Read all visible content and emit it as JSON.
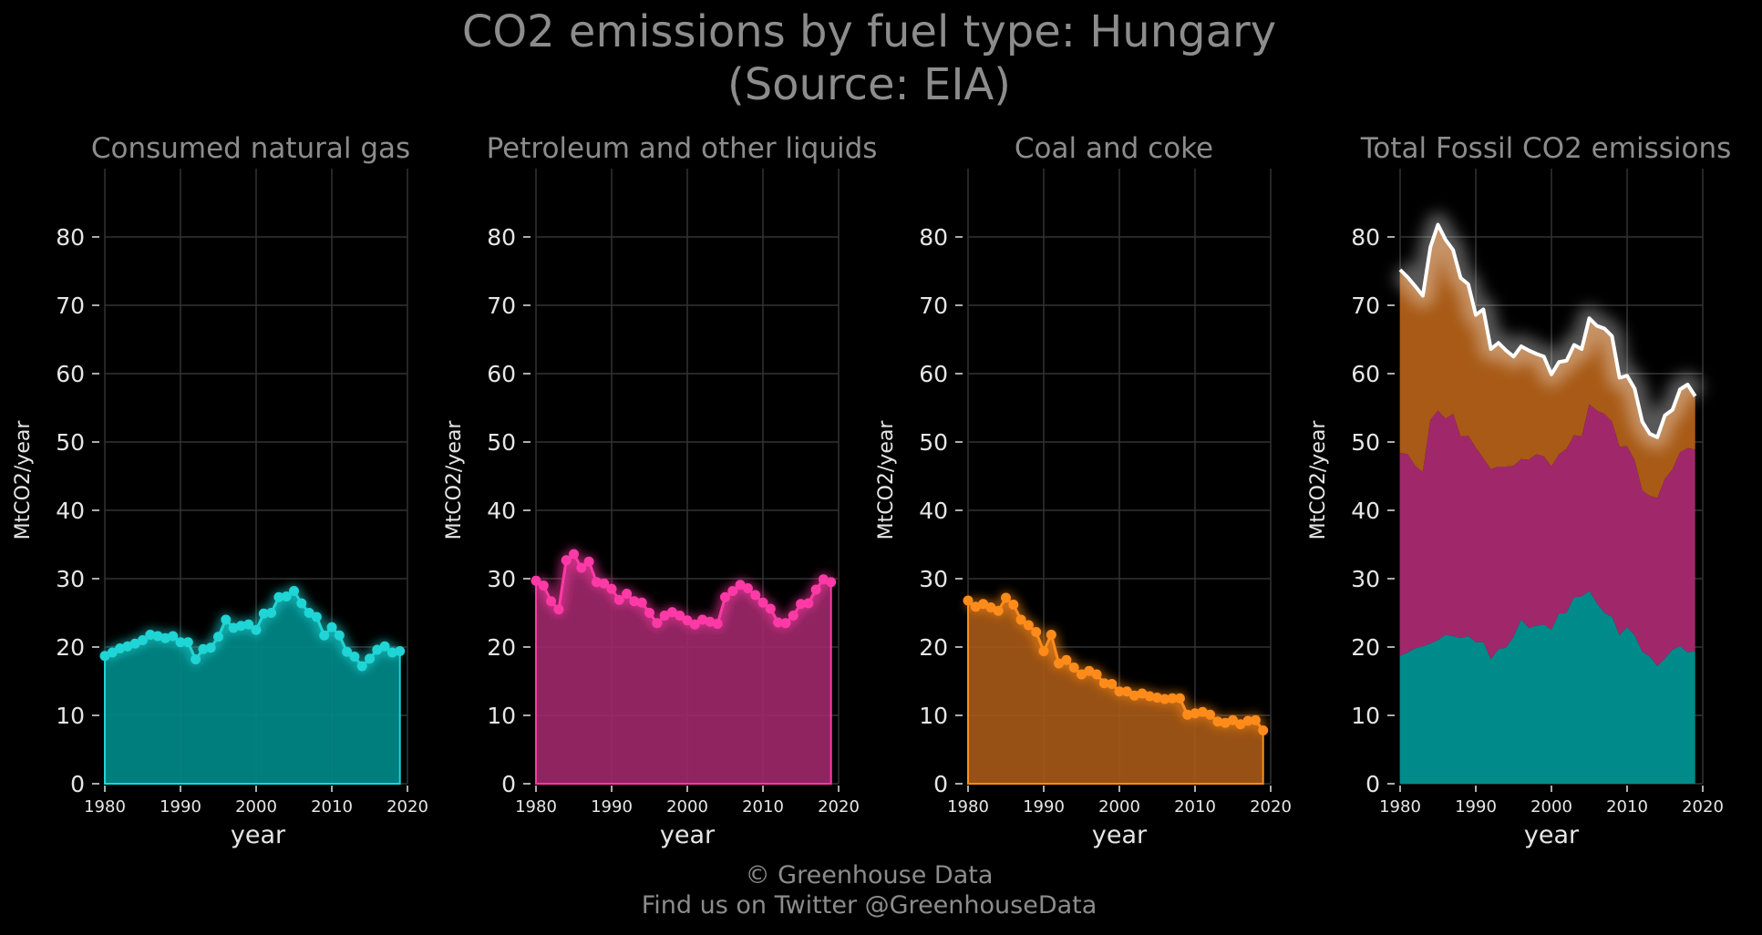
{
  "header": {
    "title_line1": "CO2 emissions by fuel type: Hungary",
    "title_line2": "(Source: EIA)"
  },
  "footer": {
    "line1": "© Greenhouse Data",
    "line2": "Find us on Twitter @GreenhouseData"
  },
  "colors": {
    "gas": "#1fd5d5",
    "gas_fill": "#008b8b",
    "petroleum": "#ff3aa6",
    "petroleum_fill": "#a0286a",
    "coal": "#ff8c1a",
    "coal_fill": "#a85a16",
    "total_line": "#ffffff",
    "grid": "#333333"
  },
  "chart_data": [
    {
      "type": "area",
      "title": "Consumed natural gas",
      "xlabel": "year",
      "ylabel": "MtCO2/year",
      "xlim": [
        1980,
        2020
      ],
      "ylim": [
        0,
        90
      ],
      "xticks": [
        "1980",
        "1990",
        "2000",
        "2010",
        "2020"
      ],
      "yticks": [
        "0",
        "10",
        "20",
        "30",
        "40",
        "50",
        "60",
        "70",
        "80"
      ],
      "grid": true,
      "series": [
        {
          "color_key": "gas",
          "x": [
            1980,
            1981,
            1982,
            1983,
            1984,
            1985,
            1986,
            1987,
            1988,
            1989,
            1990,
            1991,
            1992,
            1993,
            1994,
            1995,
            1996,
            1997,
            1998,
            1999,
            2000,
            2001,
            2002,
            2003,
            2004,
            2005,
            2006,
            2007,
            2008,
            2009,
            2010,
            2011,
            2012,
            2013,
            2014,
            2015,
            2016,
            2017,
            2018,
            2019
          ],
          "values": [
            18.7,
            19.2,
            19.8,
            20.1,
            20.5,
            21.0,
            21.8,
            21.6,
            21.3,
            21.6,
            20.7,
            20.7,
            18.2,
            19.7,
            19.9,
            21.5,
            24.0,
            22.8,
            23.1,
            23.3,
            22.5,
            24.9,
            25.0,
            27.3,
            27.4,
            28.2,
            26.4,
            25.0,
            24.4,
            21.7,
            22.9,
            21.7,
            19.3,
            18.6,
            17.2,
            18.3,
            19.6,
            20.1,
            19.2,
            19.4
          ]
        }
      ]
    },
    {
      "type": "area",
      "title": "Petroleum and other liquids",
      "xlabel": "year",
      "ylabel": "MtCO2/year",
      "xlim": [
        1980,
        2020
      ],
      "ylim": [
        0,
        90
      ],
      "xticks": [
        "1980",
        "1990",
        "2000",
        "2010",
        "2020"
      ],
      "yticks": [
        "0",
        "10",
        "20",
        "30",
        "40",
        "50",
        "60",
        "70",
        "80"
      ],
      "grid": true,
      "series": [
        {
          "color_key": "petroleum",
          "x": [
            1980,
            1981,
            1982,
            1983,
            1984,
            1985,
            1986,
            1987,
            1988,
            1989,
            1990,
            1991,
            1992,
            1993,
            1994,
            1995,
            1996,
            1997,
            1998,
            1999,
            2000,
            2001,
            2002,
            2003,
            2004,
            2005,
            2006,
            2007,
            2008,
            2009,
            2010,
            2011,
            2012,
            2013,
            2014,
            2015,
            2016,
            2017,
            2018,
            2019
          ],
          "values": [
            29.7,
            29.0,
            26.7,
            25.5,
            32.7,
            33.6,
            31.6,
            32.5,
            29.5,
            29.3,
            28.5,
            26.9,
            27.8,
            26.7,
            26.5,
            25.0,
            23.5,
            24.6,
            25.1,
            24.6,
            23.9,
            23.3,
            24.0,
            23.7,
            23.4,
            27.3,
            28.2,
            29.1,
            28.6,
            27.6,
            26.5,
            25.6,
            23.6,
            23.5,
            24.6,
            26.3,
            26.4,
            28.4,
            29.9,
            29.5
          ]
        }
      ]
    },
    {
      "type": "area",
      "title": "Coal and coke",
      "xlabel": "year",
      "ylabel": "MtCO2/year",
      "xlim": [
        1980,
        2020
      ],
      "ylim": [
        0,
        90
      ],
      "xticks": [
        "1980",
        "1990",
        "2000",
        "2010",
        "2020"
      ],
      "yticks": [
        "0",
        "10",
        "20",
        "30",
        "40",
        "50",
        "60",
        "70",
        "80"
      ],
      "grid": true,
      "series": [
        {
          "color_key": "coal",
          "x": [
            1980,
            1981,
            1982,
            1983,
            1984,
            1985,
            1986,
            1987,
            1988,
            1989,
            1990,
            1991,
            1992,
            1993,
            1994,
            1995,
            1996,
            1997,
            1998,
            1999,
            2000,
            2001,
            2002,
            2003,
            2004,
            2005,
            2006,
            2007,
            2008,
            2009,
            2010,
            2011,
            2012,
            2013,
            2014,
            2015,
            2016,
            2017,
            2018,
            2019
          ],
          "values": [
            26.8,
            25.9,
            26.3,
            25.8,
            25.3,
            27.2,
            26.2,
            24.0,
            23.2,
            22.2,
            19.4,
            21.8,
            17.6,
            18.1,
            17.0,
            16.0,
            16.5,
            16.0,
            14.7,
            14.6,
            13.5,
            13.5,
            12.9,
            13.2,
            12.8,
            12.6,
            12.4,
            12.5,
            12.5,
            10.1,
            10.3,
            10.5,
            10.1,
            9.1,
            8.9,
            9.3,
            8.7,
            9.2,
            9.3,
            7.8
          ]
        }
      ]
    },
    {
      "type": "area",
      "stacked": true,
      "title": "Total Fossil CO2 emissions",
      "xlabel": "year",
      "ylabel": "MtCO2/year",
      "xlim": [
        1980,
        2020
      ],
      "ylim": [
        0,
        90
      ],
      "xticks": [
        "1980",
        "1990",
        "2000",
        "2010",
        "2020"
      ],
      "yticks": [
        "0",
        "10",
        "20",
        "30",
        "40",
        "50",
        "60",
        "70",
        "80"
      ],
      "grid": true,
      "stack_order": [
        "gas",
        "petroleum",
        "coal"
      ],
      "total_line": true
    }
  ]
}
